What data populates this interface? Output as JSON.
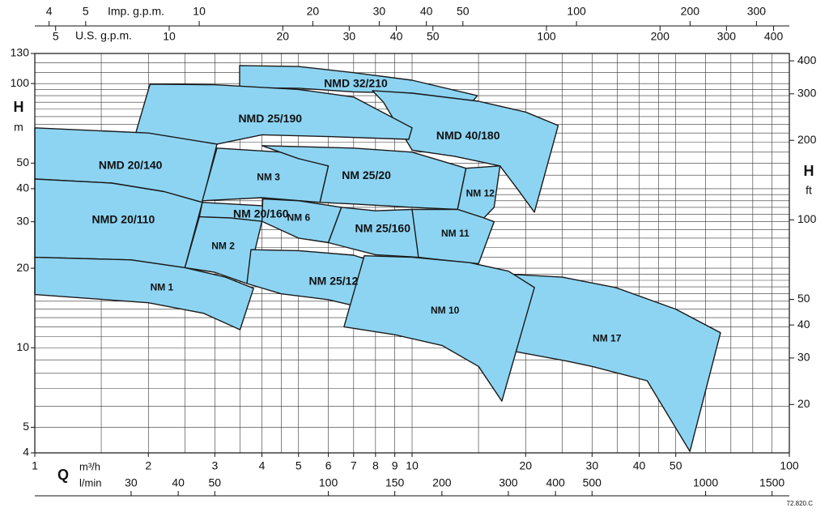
{
  "chart_data": {
    "type": "area",
    "log_x": true,
    "log_y": true,
    "grid": true,
    "color": "#8dd4f2",
    "edge_color": "#1a1a1a",
    "xlabel": "Q",
    "xunit": "m³/h",
    "ylabel": "H",
    "yunit": "m",
    "xlim": [
      1,
      100
    ],
    "xticks": [
      1,
      2,
      3,
      4,
      5,
      6,
      7,
      8,
      9,
      10,
      20,
      30,
      40,
      50,
      100
    ],
    "xgrid": [
      1,
      1.5,
      2,
      2.5,
      3,
      3.5,
      4,
      4.5,
      5,
      6,
      7,
      8,
      9,
      10,
      15,
      20,
      25,
      30,
      35,
      40,
      45,
      50,
      60,
      70,
      80,
      90,
      100
    ],
    "ylim": [
      4,
      130
    ],
    "yticks": [
      4,
      5,
      10,
      20,
      30,
      40,
      50,
      100,
      130
    ],
    "ygrid": [
      4,
      5,
      6,
      7,
      8,
      9,
      10,
      11,
      12,
      13,
      14,
      15,
      16,
      17,
      18,
      19,
      20,
      22,
      24,
      26,
      28,
      30,
      32,
      34,
      36,
      38,
      40,
      45,
      50,
      55,
      60,
      65,
      70,
      75,
      80,
      85,
      90,
      95,
      100,
      110,
      120,
      130
    ],
    "y2label": "H",
    "y2unit": "ft",
    "y2lim": [
      13.12,
      426.5
    ],
    "y2ticks": [
      20,
      30,
      40,
      50,
      100,
      200,
      300,
      400
    ],
    "x_top_imp": {
      "label": "Imp. g.p.m.",
      "lim": [
        3.666,
        366.6
      ],
      "ticks": [
        4,
        5,
        10,
        20,
        30,
        40,
        50,
        100,
        200,
        300
      ]
    },
    "x_top_us": {
      "label": "U.S. g.p.m.",
      "lim": [
        4.403,
        440.3
      ],
      "ticks": [
        5,
        10,
        20,
        30,
        40,
        50,
        100,
        200,
        300,
        400
      ]
    },
    "x_bottom_lmin": {
      "label": "l/min",
      "lim": [
        16.67,
        1667
      ],
      "ticks": [
        30,
        40,
        50,
        100,
        150,
        200,
        300,
        400,
        500,
        1000,
        1500
      ]
    },
    "note": "72.820.C",
    "series": [
      {
        "name": "NMD 32/210",
        "x": [
          3.49,
          5,
          7,
          10,
          14.9,
          14.5,
          10,
          7,
          5,
          3.49
        ],
        "values": [
          117,
          116,
          110,
          103,
          90,
          86,
          92,
          93,
          96,
          96.6
        ]
      },
      {
        "name": "NMD 40/180",
        "x": [
          7.85,
          10,
          15,
          20,
          24.4,
          21.1,
          19,
          17.1,
          13,
          10,
          8.4
        ],
        "values": [
          94,
          92,
          85.7,
          78,
          69.4,
          32.6,
          40,
          48.8,
          53,
          56,
          85
        ]
      },
      {
        "name": "NMD 25/190",
        "x": [
          2.02,
          3,
          5,
          7,
          10,
          9.8,
          6,
          4,
          3.04,
          2.6,
          1.85
        ],
        "values": [
          99.5,
          99,
          95,
          88.9,
          68,
          61.5,
          63,
          64,
          59,
          61,
          64.7
        ]
      },
      {
        "name": "NMD 20/140",
        "x": [
          1,
          2,
          3.04,
          2.78,
          2.2,
          1.6,
          1
        ],
        "values": [
          68,
          65,
          59,
          35.5,
          39,
          42,
          43.5
        ]
      },
      {
        "name": "NMD 20/110",
        "x": [
          1,
          1.6,
          2.2,
          2.78,
          2.5,
          1.8,
          1
        ],
        "values": [
          43.5,
          42,
          39,
          35.5,
          20.1,
          21.5,
          22
        ]
      },
      {
        "name": "NM 3",
        "x": [
          3.04,
          4.5,
          6,
          5.7,
          4,
          2.78
        ],
        "values": [
          57,
          55,
          48.8,
          35.5,
          37,
          36
        ]
      },
      {
        "name": "NM 25/20",
        "x": [
          4,
          7,
          10,
          13.9,
          13.2,
          10,
          7,
          5.7,
          6,
          5
        ],
        "values": [
          58.2,
          57,
          55,
          47.8,
          33.4,
          34,
          35,
          35.5,
          48.8,
          52
        ]
      },
      {
        "name": "NM 12",
        "x": [
          13.9,
          17.1,
          16.5,
          15.5,
          13.2
        ],
        "values": [
          47.8,
          48.8,
          34,
          31,
          33.4
        ]
      },
      {
        "name": "NM 20/160",
        "x": [
          2.78,
          4,
          5.8,
          5.6,
          4,
          2.73
        ],
        "values": [
          35.5,
          34.5,
          32.6,
          28.5,
          30.1,
          31.3
        ]
      },
      {
        "name": "NM 6",
        "x": [
          4.02,
          5,
          6.5,
          6,
          5,
          4
        ],
        "values": [
          36.6,
          36,
          34,
          25,
          26,
          30.1
        ]
      },
      {
        "name": "NM 25/160",
        "x": [
          6.5,
          8,
          10,
          11,
          10.4,
          8,
          6
        ],
        "values": [
          34,
          33,
          33.4,
          30,
          22,
          22.5,
          25
        ]
      },
      {
        "name": "NM 11",
        "x": [
          10,
          13.2,
          15.5,
          16.5,
          15,
          12,
          10.4
        ],
        "values": [
          33.4,
          33.4,
          31,
          30,
          20.8,
          21.5,
          22
        ]
      },
      {
        "name": "NM 2",
        "x": [
          2.73,
          3.3,
          4,
          3.65,
          3,
          2.5
        ],
        "values": [
          31.3,
          31,
          30.1,
          17.5,
          19.3,
          20.1
        ]
      },
      {
        "name": "NM 1",
        "x": [
          1,
          1.8,
          2.5,
          3.2,
          3.8,
          3.5,
          2.8,
          2,
          1
        ],
        "values": [
          22,
          21.5,
          20.1,
          18.5,
          16.8,
          11.7,
          13.5,
          14.8,
          15.9
        ]
      },
      {
        "name": "NM 25/12",
        "x": [
          3.74,
          5,
          7,
          8.5,
          10,
          9.4,
          8,
          6,
          4.5,
          3.65
        ],
        "values": [
          23.5,
          23.3,
          22.4,
          20.5,
          18.1,
          11.9,
          13.8,
          15.2,
          16,
          17.5
        ]
      },
      {
        "name": "NM 17",
        "x": [
          15.7,
          25,
          34.6,
          50,
          65.7,
          54.5,
          42,
          30,
          25.7,
          18.6
        ],
        "values": [
          19.2,
          18.5,
          16.9,
          14,
          11.4,
          4.05,
          7.5,
          8.5,
          8.9,
          9.7
        ]
      },
      {
        "name": "NM 10",
        "x": [
          7.47,
          10,
          14.2,
          18,
          21.1,
          17.3,
          15,
          12,
          9,
          6.6
        ],
        "values": [
          22.3,
          22,
          21,
          19.5,
          16.9,
          6.28,
          8.5,
          10.2,
          11.2,
          12
        ]
      }
    ]
  }
}
